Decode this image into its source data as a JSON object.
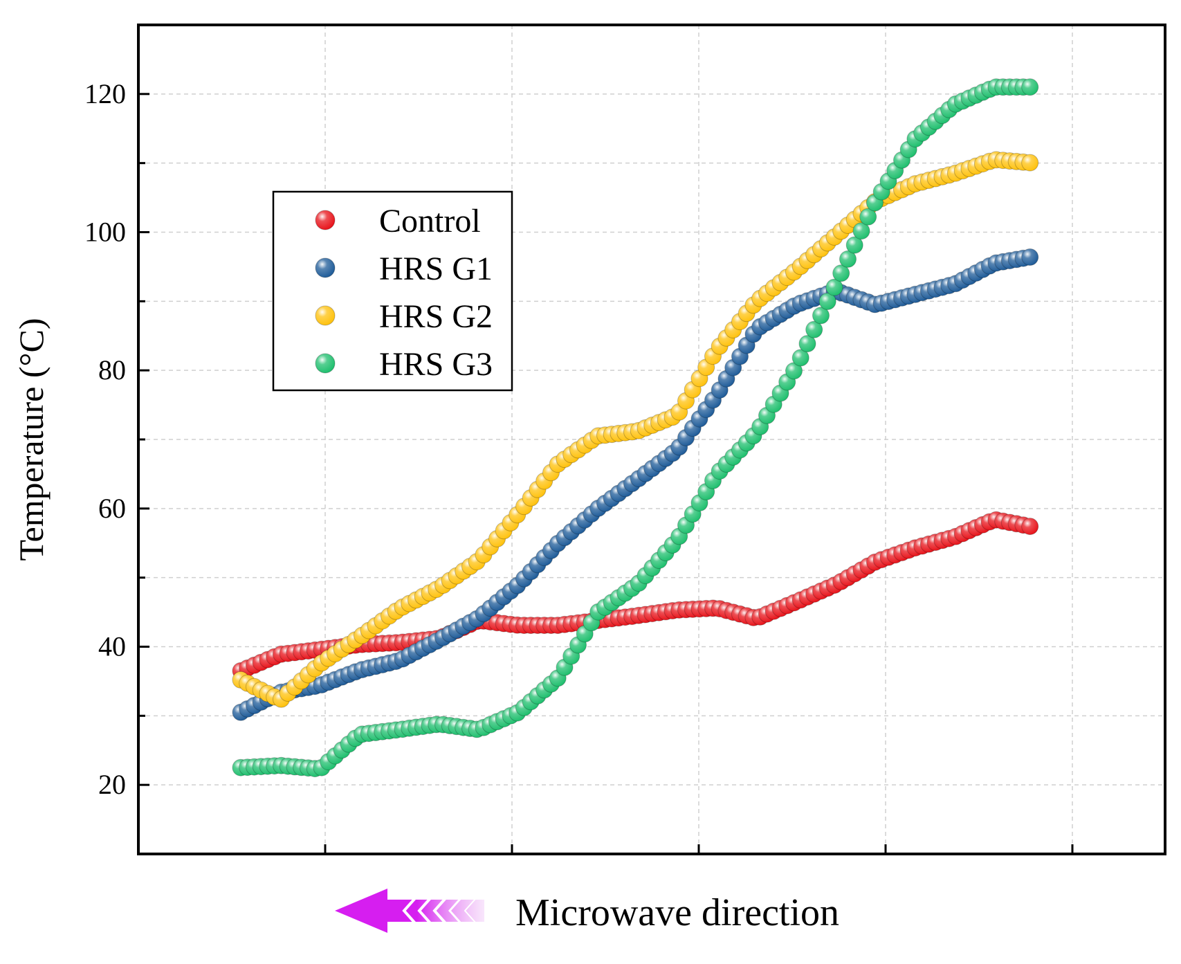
{
  "chart_data": {
    "type": "scatter",
    "title": "",
    "xlabel": "",
    "ylabel": "Temperature (°C)",
    "ylim": [
      10,
      130
    ],
    "xlim": [
      -5,
      100
    ],
    "yticks": [
      20,
      40,
      60,
      80,
      100,
      120
    ],
    "grid": true,
    "legend_position": "upper-left",
    "caption": "Microwave direction",
    "caption_arrow": "left",
    "series": [
      {
        "name": "Control",
        "color": "#e8141b",
        "x": [
          0,
          5,
          10,
          15,
          20,
          25,
          30,
          35,
          40,
          45,
          50,
          55,
          60,
          65,
          70,
          75,
          80,
          85,
          90,
          95,
          100
        ],
        "y": [
          36.5,
          38.9,
          39.6,
          40.3,
          40.6,
          41.2,
          43.8,
          43.1,
          43.1,
          43.8,
          44.5,
          45.3,
          45.6,
          44.1,
          46.5,
          49.0,
          52.3,
          54.3,
          55.9,
          58.4,
          57.3
        ]
      },
      {
        "name": "HRS G1",
        "color": "#1f5c99",
        "x": [
          0,
          5,
          10,
          15,
          20,
          25,
          30,
          35,
          40,
          45,
          50,
          55,
          60,
          65,
          70,
          75,
          80,
          85,
          90,
          95,
          100
        ],
        "y": [
          30.5,
          33.4,
          34.4,
          36.6,
          38.0,
          41.0,
          44.2,
          49.0,
          55.0,
          60.0,
          64.2,
          68.5,
          76.5,
          86.0,
          89.5,
          91.5,
          89.5,
          91.0,
          92.5,
          95.5,
          96.5
        ]
      },
      {
        "name": "HRS G2",
        "color": "#ffc20e",
        "x": [
          0,
          5,
          10,
          15,
          20,
          25,
          30,
          35,
          40,
          45,
          50,
          55,
          60,
          65,
          70,
          75,
          80,
          85,
          90,
          95,
          100
        ],
        "y": [
          35.2,
          32.3,
          37.5,
          41.4,
          45.5,
          48.5,
          52.5,
          59.3,
          66.5,
          70.5,
          71.2,
          73.5,
          83.0,
          90.0,
          94.5,
          99.5,
          104.5,
          107.0,
          108.5,
          110.5,
          110.0
        ]
      },
      {
        "name": "HRS G3",
        "color": "#1fbf6e",
        "x": [
          0,
          5,
          10,
          15,
          20,
          25,
          30,
          35,
          40,
          45,
          50,
          55,
          60,
          65,
          70,
          75,
          80,
          85,
          90,
          95,
          100
        ],
        "y": [
          22.5,
          22.8,
          22.3,
          27.3,
          28.0,
          28.8,
          28.0,
          30.5,
          35.5,
          45.0,
          49.0,
          55.5,
          65.0,
          71.0,
          80.5,
          92.5,
          104.5,
          113.5,
          118.5,
          121.0,
          121.0
        ]
      }
    ]
  }
}
